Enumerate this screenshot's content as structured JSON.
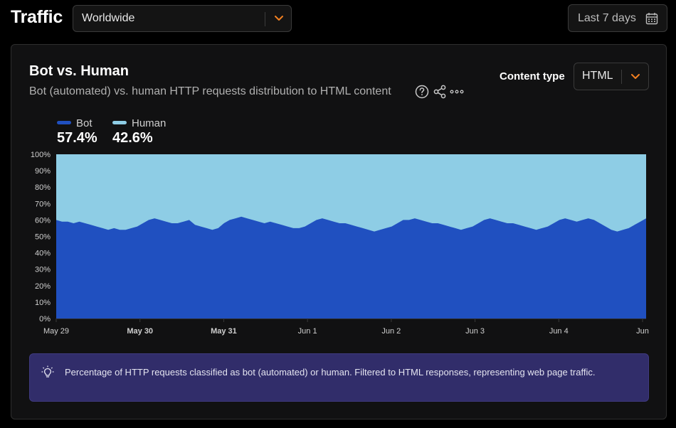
{
  "header": {
    "title": "Traffic",
    "region": "Worldwide",
    "date_range": "Last 7 days"
  },
  "card": {
    "title": "Bot vs. Human",
    "subtitle": "Bot (automated) vs. human HTTP requests distribution to HTML content",
    "content_type_label": "Content type",
    "content_type_value": "HTML"
  },
  "legend": {
    "bot": {
      "name": "Bot",
      "value": "57.4%",
      "color": "#2050c0"
    },
    "human": {
      "name": "Human",
      "value": "42.6%",
      "color": "#8ecde5"
    }
  },
  "info_text": "Percentage of HTTP requests classified as bot (automated) or human. Filtered to HTML responses, representing web page traffic.",
  "chart_data": {
    "type": "area",
    "stacked": true,
    "y_ticks": [
      "100%",
      "90%",
      "80%",
      "70%",
      "60%",
      "50%",
      "40%",
      "30%",
      "20%",
      "10%",
      "0%"
    ],
    "x_ticks": [
      {
        "label": "May 29",
        "bold": false
      },
      {
        "label": "May 30",
        "bold": true
      },
      {
        "label": "May 31",
        "bold": true
      },
      {
        "label": "Jun 1",
        "bold": false
      },
      {
        "label": "Jun 2",
        "bold": false
      },
      {
        "label": "Jun 3",
        "bold": false
      },
      {
        "label": "Jun 4",
        "bold": false
      },
      {
        "label": "Jun",
        "bold": false
      }
    ],
    "ylim": [
      0,
      100
    ],
    "series": [
      {
        "name": "Bot",
        "color": "#2050c0",
        "values": [
          60,
          59,
          59,
          58,
          59,
          58,
          57,
          56,
          55,
          54,
          55,
          54,
          54,
          55,
          56,
          58,
          60,
          61,
          60,
          59,
          58,
          58,
          59,
          60,
          57,
          56,
          55,
          54,
          55,
          58,
          60,
          61,
          62,
          61,
          60,
          59,
          58,
          59,
          58,
          57,
          56,
          55,
          55,
          56,
          58,
          60,
          61,
          60,
          59,
          58,
          58,
          57,
          56,
          55,
          54,
          53,
          54,
          55,
          56,
          58,
          60,
          60,
          61,
          60,
          59,
          58,
          58,
          57,
          56,
          55,
          54,
          55,
          56,
          58,
          60,
          61,
          60,
          59,
          58,
          58,
          57,
          56,
          55,
          54,
          55,
          56,
          58,
          60,
          61,
          60,
          59,
          60,
          61,
          60,
          58,
          56,
          54,
          53,
          54,
          55,
          57,
          59,
          61
        ]
      },
      {
        "name": "Human",
        "color": "#8ecde5",
        "fill_to": 100
      }
    ],
    "grid": false
  }
}
